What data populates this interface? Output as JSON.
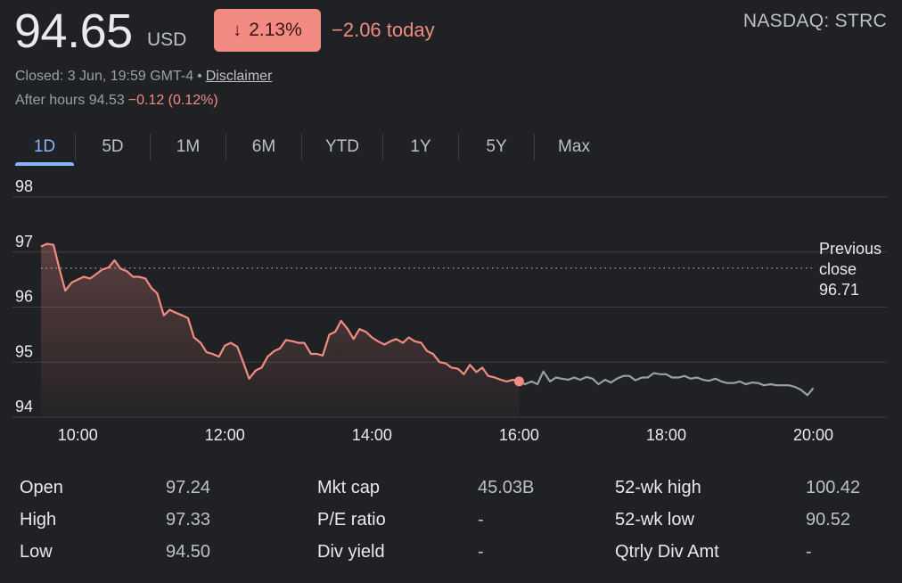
{
  "header": {
    "price": "94.65",
    "currency": "USD",
    "change_arrow": "↓",
    "change_percent": "2.13%",
    "change_today": "−2.06 today",
    "exchange": "NASDAQ: STRC",
    "closed_text": "Closed: 3 Jun, 19:59 GMT-4",
    "separator": "•",
    "disclaimer": "Disclaimer",
    "after_hours_label": "After hours 94.53",
    "after_hours_change": "−0.12 (0.12%)"
  },
  "tabs": [
    {
      "label": "1D",
      "active": true
    },
    {
      "label": "5D",
      "active": false
    },
    {
      "label": "1M",
      "active": false
    },
    {
      "label": "6M",
      "active": false
    },
    {
      "label": "YTD",
      "active": false
    },
    {
      "label": "1Y",
      "active": false
    },
    {
      "label": "5Y",
      "active": false
    },
    {
      "label": "Max",
      "active": false
    }
  ],
  "colors": {
    "down": "#f28b82",
    "after_hours_line": "#9aa0a6",
    "grid": "#3c4043",
    "accent": "#8ab4f8",
    "background": "#202124"
  },
  "chart_data": {
    "type": "line",
    "xlim": [
      9.5,
      21.0
    ],
    "ylim": [
      94,
      98
    ],
    "yticks": [
      98,
      97,
      96,
      95,
      94
    ],
    "ytick_labels": [
      "98",
      "97",
      "96",
      "95",
      "94"
    ],
    "xticks": [
      10,
      12,
      14,
      16,
      18,
      20
    ],
    "xtick_labels": [
      "10:00",
      "12:00",
      "14:00",
      "16:00",
      "18:00",
      "20:00"
    ],
    "previous_close": 96.71,
    "previous_close_label_1": "Previous",
    "previous_close_label_2": "close",
    "previous_close_value": "96.71",
    "series": [
      {
        "session": "regular",
        "x": [
          9.5,
          9.58,
          9.67,
          9.75,
          9.83,
          9.92,
          10.0,
          10.08,
          10.17,
          10.25,
          10.33,
          10.42,
          10.5,
          10.58,
          10.67,
          10.75,
          10.83,
          10.92,
          11.0,
          11.08,
          11.17,
          11.25,
          11.33,
          11.42,
          11.5,
          11.58,
          11.67,
          11.75,
          11.83,
          11.92,
          12.0,
          12.08,
          12.17,
          12.25,
          12.33,
          12.42,
          12.5,
          12.58,
          12.67,
          12.75,
          12.83,
          12.92,
          13.0,
          13.08,
          13.17,
          13.25,
          13.33,
          13.42,
          13.5,
          13.58,
          13.67,
          13.75,
          13.83,
          13.92,
          14.0,
          14.08,
          14.17,
          14.25,
          14.33,
          14.42,
          14.5,
          14.58,
          14.67,
          14.75,
          14.83,
          14.92,
          15.0,
          15.08,
          15.17,
          15.25,
          15.33,
          15.42,
          15.5,
          15.58,
          15.67,
          15.75,
          15.83,
          15.92,
          16.0
        ],
        "y": [
          97.1,
          97.15,
          97.13,
          96.7,
          96.3,
          96.45,
          96.5,
          96.55,
          96.52,
          96.6,
          96.68,
          96.72,
          96.85,
          96.7,
          96.65,
          96.55,
          96.55,
          96.52,
          96.35,
          96.25,
          95.85,
          95.95,
          95.9,
          95.85,
          95.8,
          95.45,
          95.35,
          95.18,
          95.15,
          95.1,
          95.3,
          95.35,
          95.28,
          95.0,
          94.7,
          94.85,
          94.9,
          95.1,
          95.2,
          95.25,
          95.4,
          95.38,
          95.35,
          95.35,
          95.15,
          95.15,
          95.12,
          95.5,
          95.55,
          95.75,
          95.6,
          95.42,
          95.6,
          95.55,
          95.45,
          95.38,
          95.32,
          95.38,
          95.42,
          95.35,
          95.45,
          95.38,
          95.35,
          95.2,
          95.15,
          95.0,
          94.98,
          94.9,
          94.88,
          94.78,
          94.95,
          94.82,
          94.9,
          94.75,
          94.72,
          94.68,
          94.65,
          94.68,
          94.65
        ]
      },
      {
        "session": "after-hours",
        "x": [
          16.0,
          16.08,
          16.17,
          16.25,
          16.33,
          16.42,
          16.5,
          16.58,
          16.67,
          16.75,
          16.83,
          16.92,
          17.0,
          17.08,
          17.17,
          17.25,
          17.33,
          17.42,
          17.5,
          17.58,
          17.67,
          17.75,
          17.83,
          17.92,
          18.0,
          18.08,
          18.17,
          18.25,
          18.33,
          18.42,
          18.5,
          18.58,
          18.67,
          18.75,
          18.83,
          18.92,
          19.0,
          19.08,
          19.17,
          19.25,
          19.33,
          19.42,
          19.5,
          19.58,
          19.67,
          19.75,
          19.83,
          19.92,
          20.0
        ],
        "y": [
          94.65,
          94.6,
          94.65,
          94.6,
          94.83,
          94.65,
          94.72,
          94.7,
          94.68,
          94.72,
          94.68,
          94.73,
          94.7,
          94.6,
          94.68,
          94.63,
          94.7,
          94.75,
          94.75,
          94.67,
          94.72,
          94.72,
          94.8,
          94.78,
          94.78,
          94.72,
          94.72,
          94.75,
          94.7,
          94.72,
          94.68,
          94.66,
          94.7,
          94.65,
          94.62,
          94.62,
          94.65,
          94.6,
          94.63,
          94.62,
          94.58,
          94.6,
          94.58,
          94.58,
          94.58,
          94.55,
          94.5,
          94.4,
          94.53
        ]
      }
    ],
    "close_marker": {
      "x": 16.0,
      "y": 94.65
    },
    "grid": true
  },
  "stats": [
    {
      "label": "Open",
      "value": "97.24"
    },
    {
      "label": "High",
      "value": "97.33"
    },
    {
      "label": "Low",
      "value": "94.50"
    },
    {
      "label": "Mkt cap",
      "value": "45.03B"
    },
    {
      "label": "P/E ratio",
      "value": "-"
    },
    {
      "label": "Div yield",
      "value": "-"
    },
    {
      "label": "52-wk high",
      "value": "100.42"
    },
    {
      "label": "52-wk low",
      "value": "90.52"
    },
    {
      "label": "Qtrly Div Amt",
      "value": "-"
    }
  ]
}
